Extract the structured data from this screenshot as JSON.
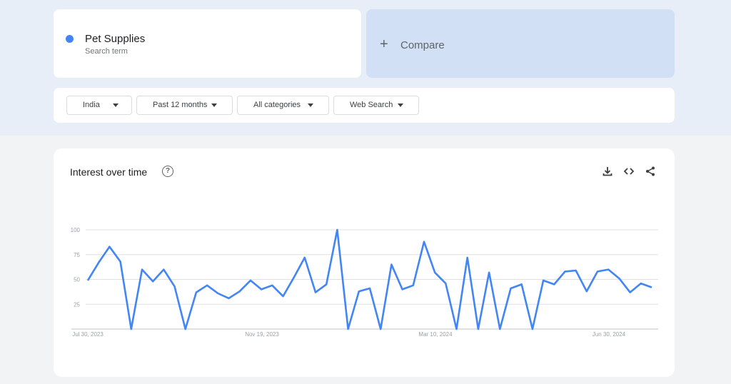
{
  "search_term": {
    "name": "Pet Supplies",
    "subtitle": "Search term",
    "color": "#4285f4"
  },
  "compare": {
    "plus": "+",
    "label": "Compare"
  },
  "filters": [
    {
      "label": "India"
    },
    {
      "label": "Past 12 months"
    },
    {
      "label": "All categories"
    },
    {
      "label": "Web Search"
    }
  ],
  "interest_card": {
    "title": "Interest over time",
    "help_icon": "help-circle-icon",
    "tools": [
      "download-icon",
      "embed-code-icon",
      "share-icon"
    ]
  },
  "chart_data": {
    "type": "line",
    "ylim": [
      0,
      100
    ],
    "y_ticks": [
      "25",
      "50",
      "75",
      "100"
    ],
    "x_tick_labels": [
      "Jul 30, 2023",
      "Nov 19, 2023",
      "Mar 10, 2024",
      "Jun 30, 2024"
    ],
    "grid": true,
    "series": [
      {
        "color": "#4285f4",
        "values": [
          49,
          67,
          83,
          68,
          0,
          60,
          48,
          60,
          43,
          0,
          37,
          44,
          36,
          31,
          38,
          49,
          40,
          44,
          33,
          52,
          72,
          37,
          45,
          100,
          0,
          38,
          41,
          0,
          65,
          40,
          44,
          88,
          57,
          46,
          0,
          72,
          0,
          57,
          0,
          41,
          45,
          0,
          49,
          45,
          58,
          59,
          38,
          58,
          60,
          51,
          37,
          46,
          42
        ]
      }
    ]
  }
}
